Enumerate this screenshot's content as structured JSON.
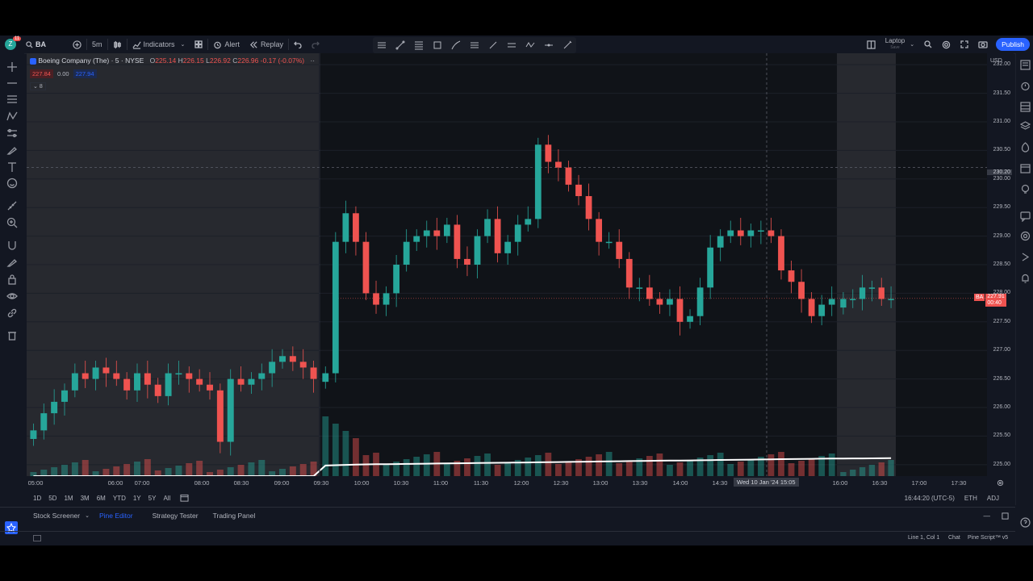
{
  "toolbar": {
    "avatar_badge": "11",
    "symbol": "BA",
    "interval": "5m",
    "indicators_label": "Indicators",
    "alert_label": "Alert",
    "replay_label": "Replay",
    "layout_label": "Laptop",
    "layout_sub": "Save",
    "publish_label": "Publish"
  },
  "legend": {
    "title": "Boeing Company (The) · 5 · NYSE",
    "o_label": "O",
    "o_value": "225.14",
    "h_label": "H",
    "h_value": "226.15",
    "l_label": "L",
    "l_value": "226.92",
    "c_label": "C",
    "c_value": "226.96",
    "change": "-0.17 (-0.07%)",
    "sell_price": "227.84",
    "spread": "0.00",
    "buy_price": "227.94",
    "indicator_count": "8"
  },
  "price_axis": {
    "currency": "USD",
    "ticks": [
      "232.00",
      "231.50",
      "231.00",
      "230.50",
      "230.00",
      "229.50",
      "229.00",
      "228.50",
      "228.00",
      "227.50",
      "227.00",
      "226.50",
      "226.00",
      "225.50",
      "225.00"
    ],
    "crosshair_price": "230.20",
    "last_symbol": "BA",
    "last_price": "227.91",
    "countdown": "00:40"
  },
  "time_axis": {
    "ticks": [
      "05:00",
      "06:00",
      "07:00",
      "08:00",
      "08:30",
      "09:00",
      "09:30",
      "10:00",
      "10:30",
      "11:00",
      "11:30",
      "12:00",
      "12:30",
      "13:00",
      "13:30",
      "14:00",
      "14:30",
      "16:00",
      "16:30",
      "17:00",
      "17:30"
    ],
    "crosshair_label": "Wed 10 Jan '24  15:05"
  },
  "range_bar": {
    "ranges": [
      "1D",
      "5D",
      "1M",
      "3M",
      "6M",
      "YTD",
      "1Y",
      "5Y",
      "All"
    ],
    "clock": "16:44:20 (UTC-5)",
    "session": "ETH",
    "adj": "ADJ"
  },
  "bottom_tabs": [
    "Stock Screener",
    "Pine Editor",
    "Strategy Tester",
    "Trading Panel"
  ],
  "status": {
    "cursor": "Line 1, Col 1",
    "chat": "Chat",
    "version": "Pine Script™ v5"
  },
  "colors": {
    "up": "#26a69a",
    "down": "#ef5350",
    "accent": "#2962ff",
    "background": "#131722",
    "session_shade": "#3a3d44"
  },
  "chart_data": {
    "type": "candlestick",
    "symbol": "BA",
    "interval": "5",
    "ylim": [
      224.8,
      232.2
    ],
    "segments": [
      {
        "session": "pre-market",
        "start": "05:00",
        "end": "09:30",
        "points": [
          225.6,
          225.9,
          226.1,
          226.3,
          226.6,
          226.5,
          226.7,
          226.6,
          226.5,
          226.3,
          226.6,
          226.4,
          226.2,
          226.6,
          226.6,
          226.5,
          226.4,
          226.3,
          225.4,
          226.5,
          226.4,
          226.5,
          226.6,
          226.8,
          226.9,
          226.8,
          226.7,
          226.5
        ]
      },
      {
        "session": "regular",
        "start": "09:30",
        "end": "16:00",
        "points": [
          226.6,
          228.9,
          229.4,
          228.9,
          228.0,
          227.8,
          228.0,
          228.5,
          228.9,
          229.0,
          229.1,
          229.0,
          229.2,
          228.6,
          228.5,
          229.0,
          229.3,
          228.7,
          228.9,
          229.2,
          229.3,
          230.6,
          230.3,
          230.2,
          229.9,
          229.7,
          229.3,
          228.9,
          228.9,
          228.6,
          228.1,
          228.1,
          227.9,
          227.8,
          227.9,
          227.5,
          227.6,
          228.1,
          228.8,
          229.0,
          229.1,
          229.0,
          229.1,
          229.1,
          229.0,
          228.4,
          228.2,
          227.9,
          227.6,
          227.8,
          227.9
        ]
      },
      {
        "session": "post-market",
        "start": "16:00",
        "end": "16:44",
        "points": [
          227.9,
          227.9,
          228.1,
          228.1,
          227.9,
          227.9
        ]
      }
    ]
  }
}
